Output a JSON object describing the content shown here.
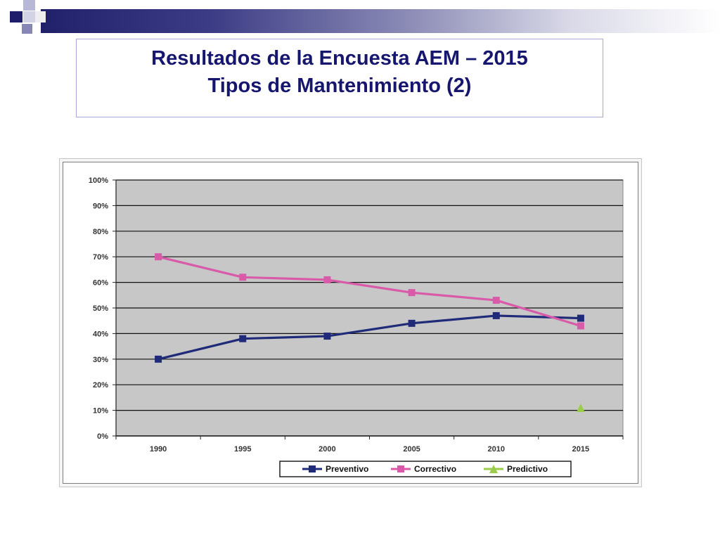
{
  "slide": {
    "title_line_1": "Resultados de la Encuesta AEM – 2015",
    "title_line_2": "Tipos de Mantenimiento (2)"
  },
  "chart_data": {
    "type": "line",
    "title": "",
    "xlabel": "",
    "ylabel": "",
    "categories": [
      "1990",
      "1995",
      "2000",
      "2005",
      "2010",
      "2015"
    ],
    "ylim": [
      0,
      100
    ],
    "y_ticks": [
      "0%",
      "10%",
      "20%",
      "30%",
      "40%",
      "50%",
      "60%",
      "70%",
      "80%",
      "90%",
      "100%"
    ],
    "grid": true,
    "legend_position": "bottom",
    "series": [
      {
        "name": "Preventivo",
        "color": "#1f2b78",
        "marker": "square",
        "values": [
          30,
          38,
          39,
          44,
          47,
          46
        ]
      },
      {
        "name": "Correctivo",
        "color": "#d85aa9",
        "marker": "square",
        "values": [
          70,
          62,
          61,
          56,
          53,
          43
        ]
      },
      {
        "name": "Predictivo",
        "color": "#9bcd4b",
        "marker": "triangle",
        "values": [
          null,
          null,
          null,
          null,
          null,
          11
        ]
      }
    ]
  }
}
